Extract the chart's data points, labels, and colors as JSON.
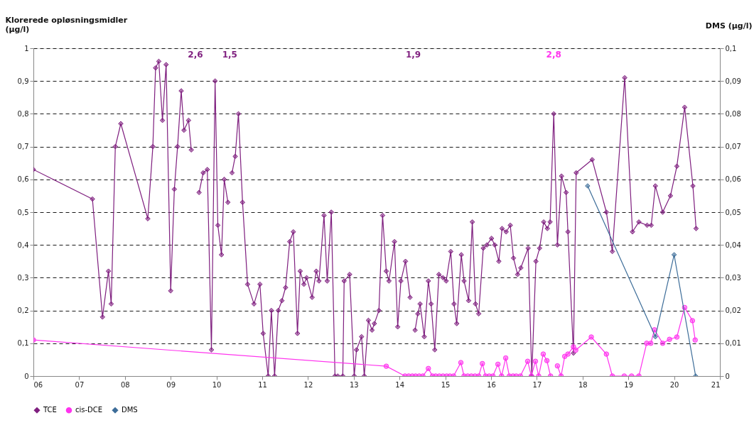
{
  "chart_data": {
    "type": "line",
    "ylabel": "Klorerede opløsningsmidler\n(µg/l)",
    "y2label": "DMS (µg/l)",
    "xlim": [
      6,
      21
    ],
    "xticks": [
      {
        "value": 6,
        "label": "06"
      },
      {
        "value": 7,
        "label": "07"
      },
      {
        "value": 8,
        "label": "08"
      },
      {
        "value": 9,
        "label": "09"
      },
      {
        "value": 10,
        "label": "10"
      },
      {
        "value": 11,
        "label": "11"
      },
      {
        "value": 12,
        "label": "12"
      },
      {
        "value": 13,
        "label": "13"
      },
      {
        "value": 14,
        "label": "14"
      },
      {
        "value": 15,
        "label": "15"
      },
      {
        "value": 16,
        "label": "16"
      },
      {
        "value": 17,
        "label": "17"
      },
      {
        "value": 18,
        "label": "18"
      },
      {
        "value": 19,
        "label": "19"
      },
      {
        "value": 20,
        "label": "20"
      },
      {
        "value": 21,
        "label": "21"
      }
    ],
    "ylim": [
      0,
      1
    ],
    "yticks": [
      0,
      {
        "value": 0.1,
        "label": "0,1"
      },
      {
        "value": 0.2,
        "label": "0,2"
      },
      {
        "value": 0.3,
        "label": "0,3"
      },
      {
        "value": 0.4,
        "label": "0,4"
      },
      {
        "value": 0.5,
        "label": "0,5"
      },
      {
        "value": 0.6,
        "label": "0,6"
      },
      {
        "value": 0.7,
        "label": "0,7"
      },
      {
        "value": 0.8,
        "label": "0,8"
      },
      {
        "value": 0.9,
        "label": "0,9"
      },
      1
    ],
    "y2lim": [
      0,
      0.1
    ],
    "y2ticks": [
      0,
      {
        "value": 0.01,
        "label": "0,01"
      },
      {
        "value": 0.02,
        "label": "0,02"
      },
      {
        "value": 0.03,
        "label": "0,03"
      },
      {
        "value": 0.04,
        "label": "0,04"
      },
      {
        "value": 0.05,
        "label": "0,05"
      },
      {
        "value": 0.06,
        "label": "0,06"
      },
      {
        "value": 0.07,
        "label": "0,07"
      },
      {
        "value": 0.08,
        "label": "0,08"
      },
      {
        "value": 0.09,
        "label": "0,09"
      },
      {
        "value": 0.1,
        "label": "0,1"
      }
    ],
    "grid": "y",
    "legend": "bottom",
    "line_style": "solid",
    "annotations": [
      "2,6",
      "1,5",
      "1,9",
      "2,8"
    ],
    "series": [
      {
        "name": "TCE",
        "color": "#7f1f7f",
        "marker": "diamond",
        "x": [
          6.0,
          7.29,
          7.51,
          7.64,
          7.7,
          7.79,
          7.91,
          8.5,
          8.61,
          8.67,
          8.74,
          8.82,
          8.9,
          9.0,
          9.08,
          9.15,
          9.23,
          9.29,
          9.39,
          9.45,
          9.54,
          9.62,
          9.71,
          9.8,
          9.89,
          9.97,
          10.03,
          10.11,
          10.17,
          10.25,
          10.29,
          10.34,
          10.41,
          10.48,
          10.57,
          10.68,
          10.82,
          10.95,
          11.02,
          11.13,
          11.2,
          11.27,
          11.35,
          11.43,
          11.51,
          11.6,
          11.68,
          11.77,
          11.83,
          11.91,
          11.97,
          12.09,
          12.18,
          12.24,
          12.35,
          12.42,
          12.51,
          12.59,
          12.65,
          12.76,
          12.79,
          12.91,
          13.01,
          13.06,
          13.17,
          13.23,
          13.32,
          13.4,
          13.45,
          13.55,
          13.63,
          13.71,
          13.77,
          13.89,
          13.96,
          14.03,
          14.13,
          14.23,
          14.3,
          14.34,
          14.4,
          14.45,
          14.54,
          14.63,
          14.69,
          14.77,
          14.86,
          14.95,
          15.02,
          15.12,
          15.19,
          15.25,
          15.35,
          15.41,
          15.51,
          15.59,
          15.66,
          15.73,
          15.83,
          15.91,
          16.01,
          16.08,
          16.17,
          16.24,
          16.33,
          16.42,
          16.49,
          16.58,
          16.65,
          16.81,
          16.89,
          16.98,
          17.06,
          17.15,
          17.23,
          17.29,
          17.37,
          17.45,
          17.54,
          17.64,
          17.68,
          17.8,
          17.86,
          18.21,
          18.52,
          18.65,
          18.92,
          19.09,
          19.23,
          19.41,
          19.5,
          19.59,
          19.75,
          19.92,
          20.06,
          20.23,
          20.41,
          20.48
        ],
        "values": [
          0.63,
          0.54,
          0.18,
          0.32,
          0.22,
          0.7,
          0.77,
          0.48,
          0.7,
          0.94,
          0.96,
          0.78,
          0.95,
          0.26,
          0.57,
          0.7,
          0.87,
          0.75,
          0.78,
          0.69,
          null,
          0.56,
          0.62,
          0.63,
          0.08,
          0.9,
          0.46,
          0.37,
          0.6,
          0.53,
          null,
          0.62,
          0.67,
          0.8,
          0.53,
          0.28,
          0.22,
          0.28,
          0.13,
          0,
          0.2,
          0,
          0.2,
          0.23,
          0.27,
          0.41,
          0.44,
          0.13,
          0.32,
          0.28,
          0.3,
          0.24,
          0.32,
          0.29,
          0.49,
          0.29,
          0.5,
          0,
          0,
          0,
          0.29,
          0.31,
          0,
          0.08,
          0.12,
          0,
          0.17,
          0.14,
          0.16,
          0.2,
          0.49,
          0.32,
          0.29,
          0.41,
          0.15,
          0.29,
          0.35,
          0.24,
          null,
          0.14,
          0.19,
          0.22,
          0.12,
          0.29,
          0.22,
          0.08,
          0.31,
          0.3,
          0.29,
          0.38,
          0.22,
          0.16,
          0.37,
          0.29,
          0.23,
          0.47,
          0.22,
          0.19,
          0.39,
          0.4,
          0.42,
          0.4,
          0.35,
          0.45,
          0.44,
          0.46,
          0.36,
          0.31,
          0.33,
          0.39,
          0,
          0.35,
          0.39,
          0.47,
          0.45,
          0.47,
          0.8,
          0.4,
          0.61,
          0.56,
          0.44,
          0.07,
          0.62,
          0.66,
          0.5,
          0.38,
          0.91,
          0.44,
          0.47,
          0.46,
          0.46,
          0.58,
          0.5,
          0.55,
          0.64,
          0.82,
          0.58,
          0.45
        ]
      },
      {
        "name": "cis-DCE",
        "color": "#ff33ee",
        "marker": "circle",
        "x": [
          6.0,
          13.71,
          14.12,
          14.2,
          14.28,
          14.35,
          14.43,
          14.51,
          14.63,
          14.72,
          14.79,
          14.87,
          14.95,
          15.03,
          15.1,
          15.18,
          15.34,
          15.41,
          15.49,
          15.57,
          15.65,
          15.73,
          15.81,
          15.88,
          15.96,
          16.04,
          16.15,
          16.23,
          16.32,
          16.4,
          16.48,
          16.55,
          16.64,
          16.8,
          16.88,
          16.97,
          17.04,
          17.14,
          17.22,
          17.3,
          17.37,
          17.45,
          17.53,
          17.61,
          17.68,
          17.8,
          17.85,
          18.19,
          18.52,
          18.65,
          18.91,
          19.07,
          19.23,
          19.4,
          19.49,
          19.57,
          19.75,
          19.9,
          20.06,
          20.23,
          20.4,
          20.46
        ],
        "values": [
          0.11,
          0.03,
          0,
          0,
          0,
          0,
          0,
          0,
          0.023,
          0,
          0,
          0,
          0,
          0,
          0,
          0,
          0.041,
          0,
          0,
          0,
          0,
          0,
          0.038,
          0,
          0,
          0,
          0.036,
          0,
          0.055,
          0,
          0,
          0,
          0,
          0.045,
          0,
          0.045,
          0,
          0.067,
          0.047,
          0,
          null,
          0.031,
          0,
          0.06,
          0.067,
          0.089,
          0.079,
          0.119,
          0.067,
          0,
          0,
          0,
          0,
          0.1,
          0.1,
          0.141,
          0.1,
          0.112,
          0.119,
          0.209,
          0.169,
          0.11
        ]
      },
      {
        "name": "DMS",
        "color": "#3d6d99",
        "marker": "diamond",
        "axis": "y2",
        "x": [
          18.11,
          19.59,
          20.0,
          20.47
        ],
        "values": [
          0.058,
          0.012,
          0.037,
          0
        ]
      }
    ]
  }
}
